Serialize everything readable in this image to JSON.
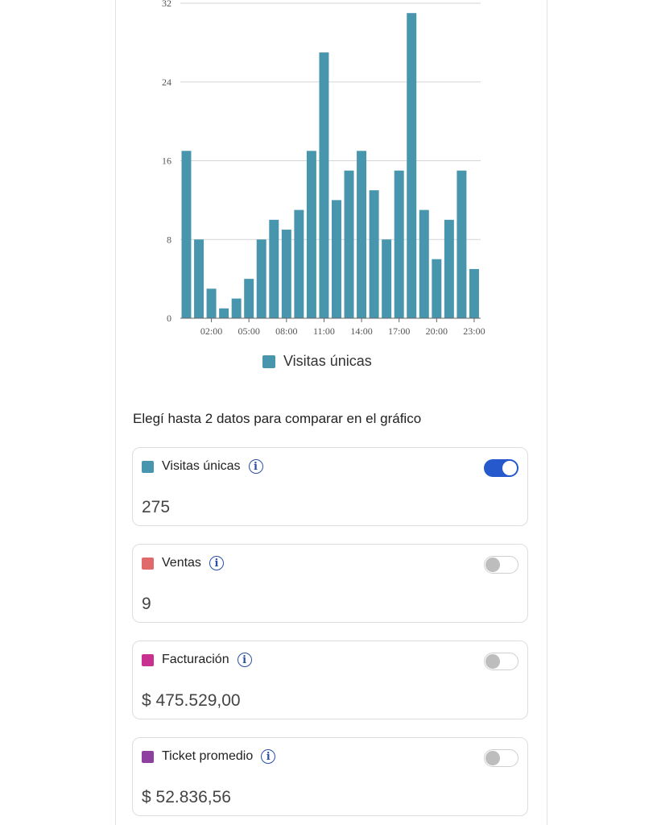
{
  "chart_data": {
    "type": "bar",
    "categories": [
      "00:00",
      "01:00",
      "02:00",
      "03:00",
      "04:00",
      "05:00",
      "06:00",
      "07:00",
      "08:00",
      "09:00",
      "10:00",
      "11:00",
      "12:00",
      "13:00",
      "14:00",
      "15:00",
      "16:00",
      "17:00",
      "18:00",
      "19:00",
      "20:00",
      "21:00",
      "22:00",
      "23:00"
    ],
    "tick_labels": [
      "02:00",
      "05:00",
      "08:00",
      "11:00",
      "14:00",
      "17:00",
      "20:00",
      "23:00"
    ],
    "series": [
      {
        "name": "Visitas únicas",
        "color": "#4796ae",
        "values": [
          17,
          8,
          3,
          1,
          2,
          4,
          8,
          10,
          9,
          11,
          17,
          27,
          12,
          15,
          17,
          13,
          8,
          15,
          31,
          11,
          6,
          10,
          15,
          5
        ]
      }
    ],
    "yticks": [
      0,
      8,
      16,
      24,
      32
    ],
    "ylim": [
      0,
      32
    ],
    "grid": true,
    "legend": "bottom"
  },
  "prompt": "Elegí hasta 2 datos para comparar en el gráfico",
  "metrics": [
    {
      "label": "Visitas únicas",
      "value": "275",
      "color": "#4796ae",
      "enabled": true
    },
    {
      "label": "Ventas",
      "value": "9",
      "color": "#e06a6a",
      "enabled": false
    },
    {
      "label": "Facturación",
      "value": "$ 475.529,00",
      "color": "#c8318f",
      "enabled": false
    },
    {
      "label": "Ticket promedio",
      "value": "$ 52.836,56",
      "color": "#8e3fa0",
      "enabled": false
    }
  ],
  "info_icon": "i"
}
